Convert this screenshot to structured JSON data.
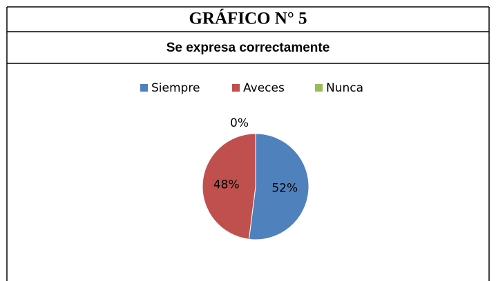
{
  "chart_data": {
    "type": "pie",
    "title": "GRÁFICO N° 5",
    "subtitle": "Se expresa correctamente",
    "categories": [
      "Siempre",
      "Aveces",
      "Nunca"
    ],
    "values": [
      52,
      48,
      0
    ],
    "value_labels": [
      "52%",
      "48%",
      "0%"
    ],
    "colors": [
      "#4f81bd",
      "#c0504d",
      "#9bbb59"
    ],
    "legend": "top"
  }
}
